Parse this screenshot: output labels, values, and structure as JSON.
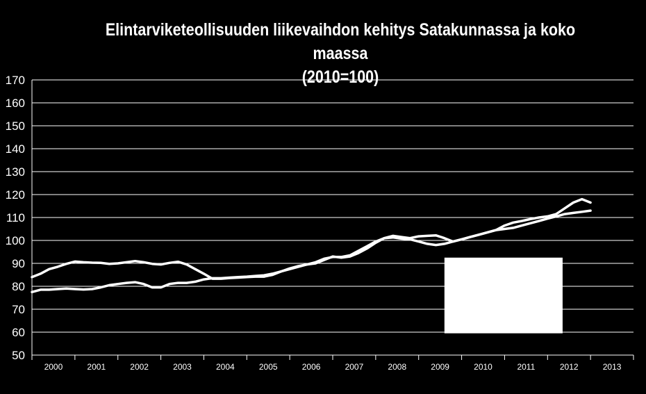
{
  "chart_data": {
    "type": "line",
    "title": "Elintarviketeollisuuden liikevaihdon kehitys Satakunnassa ja koko maassa",
    "subtitle": "(2010=100)",
    "xlabel": "",
    "ylabel": "",
    "ylim": [
      50,
      170
    ],
    "yticks": [
      50,
      60,
      70,
      80,
      90,
      100,
      110,
      120,
      130,
      140,
      150,
      160,
      170
    ],
    "xlim": [
      2000,
      2014
    ],
    "categories": [
      "2000",
      "2001",
      "2002",
      "2003",
      "2004",
      "2005",
      "2006",
      "2007",
      "2008",
      "2009",
      "2010",
      "2011",
      "2012",
      "2013"
    ],
    "grid": true,
    "legend": "none",
    "colors": {
      "background": "#000000",
      "line": "#ffffff",
      "grid": "#ffffff",
      "text": "#ffffff",
      "overlay_box": "#ffffff"
    },
    "overlay_box": {
      "x0": 2009.6,
      "x1": 2012.35,
      "y0": 59.5,
      "y1": 92.5
    },
    "series": [
      {
        "x": [
          2000.0,
          2000.2,
          2000.4,
          2000.6,
          2000.8,
          2001.0,
          2001.2,
          2001.4,
          2001.6,
          2001.8,
          2002.0,
          2002.2,
          2002.4,
          2002.6,
          2002.8,
          2003.0,
          2003.2,
          2003.4,
          2003.6,
          2003.8,
          2004.0,
          2004.2,
          2004.4,
          2004.6,
          2004.8,
          2005.0,
          2005.2,
          2005.4,
          2005.6,
          2005.8,
          2006.0,
          2006.2,
          2006.4,
          2006.6,
          2006.8,
          2007.0,
          2007.2,
          2007.4,
          2007.6,
          2007.8,
          2008.0,
          2008.2,
          2008.4,
          2008.6,
          2008.8,
          2009.0,
          2009.2,
          2009.4,
          2009.6,
          2009.8,
          2010.0,
          2010.2,
          2010.4,
          2010.6,
          2010.8,
          2011.0,
          2011.2,
          2011.4,
          2011.6,
          2011.8,
          2012.0,
          2012.2,
          2012.4,
          2012.6,
          2012.8,
          2013.0
        ],
        "values": [
          84.0,
          85.5,
          87.5,
          88.5,
          89.8,
          90.8,
          90.5,
          90.3,
          90.2,
          89.8,
          90.0,
          90.5,
          91.0,
          90.5,
          89.8,
          89.5,
          90.2,
          90.7,
          89.5,
          87.5,
          85.5,
          83.3,
          83.3,
          83.6,
          83.8,
          84.0,
          84.2,
          84.2,
          85.0,
          86.5,
          87.8,
          88.8,
          89.5,
          90.0,
          91.5,
          93.0,
          92.5,
          93.0,
          94.5,
          96.5,
          99.0,
          101.0,
          102.0,
          101.5,
          101.0,
          101.8,
          102.0,
          102.2,
          101.0,
          99.5,
          100.5,
          101.5,
          102.5,
          103.5,
          104.5,
          106.5,
          107.8,
          108.5,
          109.3,
          110.0,
          110.5,
          111.5,
          114.0,
          116.5,
          118.0,
          116.5
        ]
      },
      {
        "x": [
          2000.0,
          2000.2,
          2000.4,
          2000.6,
          2000.8,
          2001.0,
          2001.2,
          2001.4,
          2001.6,
          2001.8,
          2002.0,
          2002.2,
          2002.4,
          2002.6,
          2002.8,
          2003.0,
          2003.2,
          2003.4,
          2003.6,
          2003.8,
          2004.0,
          2004.2,
          2004.4,
          2004.6,
          2004.8,
          2005.0,
          2005.2,
          2005.4,
          2005.6,
          2005.8,
          2006.0,
          2006.2,
          2006.4,
          2006.6,
          2006.8,
          2007.0,
          2007.2,
          2007.4,
          2007.6,
          2007.8,
          2008.0,
          2008.2,
          2008.4,
          2008.6,
          2008.8,
          2009.0,
          2009.2,
          2009.4,
          2009.6,
          2009.8,
          2010.0,
          2010.2,
          2010.4,
          2010.6,
          2010.8,
          2011.0,
          2011.2,
          2011.4,
          2011.6,
          2011.8,
          2012.0,
          2012.2,
          2012.4,
          2012.6,
          2012.8,
          2013.0
        ],
        "values": [
          77.5,
          78.5,
          78.5,
          78.8,
          79.0,
          78.8,
          78.6,
          78.8,
          79.5,
          80.5,
          81.0,
          81.5,
          81.8,
          81.0,
          79.5,
          79.5,
          81.0,
          81.5,
          81.5,
          82.0,
          83.0,
          83.5,
          83.5,
          83.8,
          84.0,
          84.2,
          84.5,
          84.8,
          85.5,
          86.5,
          87.5,
          88.5,
          89.5,
          90.5,
          92.0,
          92.8,
          92.8,
          93.5,
          95.5,
          97.5,
          99.5,
          101.0,
          101.3,
          100.8,
          100.5,
          99.5,
          98.5,
          98.0,
          98.5,
          99.5,
          100.5,
          101.5,
          102.5,
          103.5,
          104.5,
          105.0,
          105.5,
          106.5,
          107.5,
          108.5,
          109.5,
          110.5,
          111.5,
          112.0,
          112.5,
          113.0
        ]
      }
    ]
  }
}
